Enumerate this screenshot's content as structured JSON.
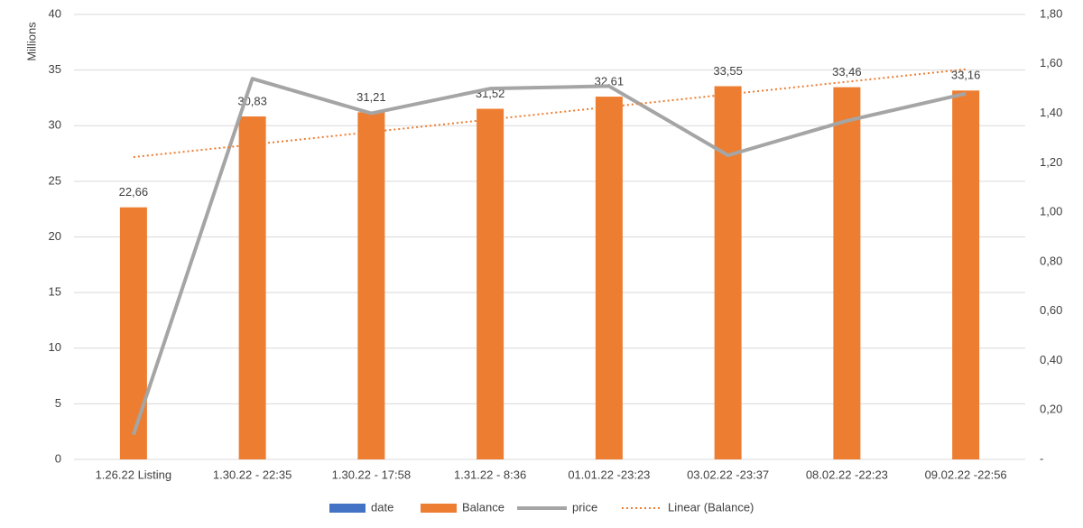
{
  "chart_data": {
    "type": "bar",
    "y_label": "Millions",
    "categories": [
      "1.26.22 Listing",
      "1.30.22 - 22:35",
      "1.30.22 - 17:58",
      "1.31.22 - 8:36",
      "01.01.22 -23:23",
      "03.02.22 -23:37",
      "08.02.22 -22:23",
      "09.02.22 -22:56"
    ],
    "series": [
      {
        "name": "date",
        "color": "#4472c4",
        "type": "bar",
        "values": [
          null,
          null,
          null,
          null,
          null,
          null,
          null,
          null
        ]
      },
      {
        "name": "Balance",
        "color": "#ed7d31",
        "type": "bar",
        "values": [
          22.66,
          30.83,
          31.21,
          31.52,
          32.61,
          33.55,
          33.46,
          33.16
        ],
        "value_labels": [
          "22,66",
          "30,83",
          "31,21",
          "31,52",
          "32,61",
          "33,55",
          "33,46",
          "33,16"
        ]
      },
      {
        "name": "price",
        "color": "#a5a5a5",
        "type": "line",
        "axis": "y2",
        "values": [
          0.1,
          1.54,
          1.4,
          1.5,
          1.51,
          1.23,
          1.37,
          1.48
        ]
      },
      {
        "name": "Linear (Balance)",
        "color": "#ed7d31",
        "type": "trendline"
      }
    ],
    "ylim": [
      0,
      40
    ],
    "yticks": [
      0,
      5,
      10,
      15,
      20,
      25,
      30,
      35,
      40
    ],
    "y2lim": [
      0,
      1.8
    ],
    "y2ticks": [
      {
        "value": 0,
        "label": "-"
      },
      {
        "value": 0.2,
        "label": "0,20"
      },
      {
        "value": 0.4,
        "label": "0,40"
      },
      {
        "value": 0.6,
        "label": "0,60"
      },
      {
        "value": 0.8,
        "label": "0,80"
      },
      {
        "value": 1.0,
        "label": "1,00"
      },
      {
        "value": 1.2,
        "label": "1,20"
      },
      {
        "value": 1.4,
        "label": "1,40"
      },
      {
        "value": 1.6,
        "label": "1,60"
      },
      {
        "value": 1.8,
        "label": "1,80"
      }
    ],
    "grid": true,
    "legend": "bottom"
  }
}
